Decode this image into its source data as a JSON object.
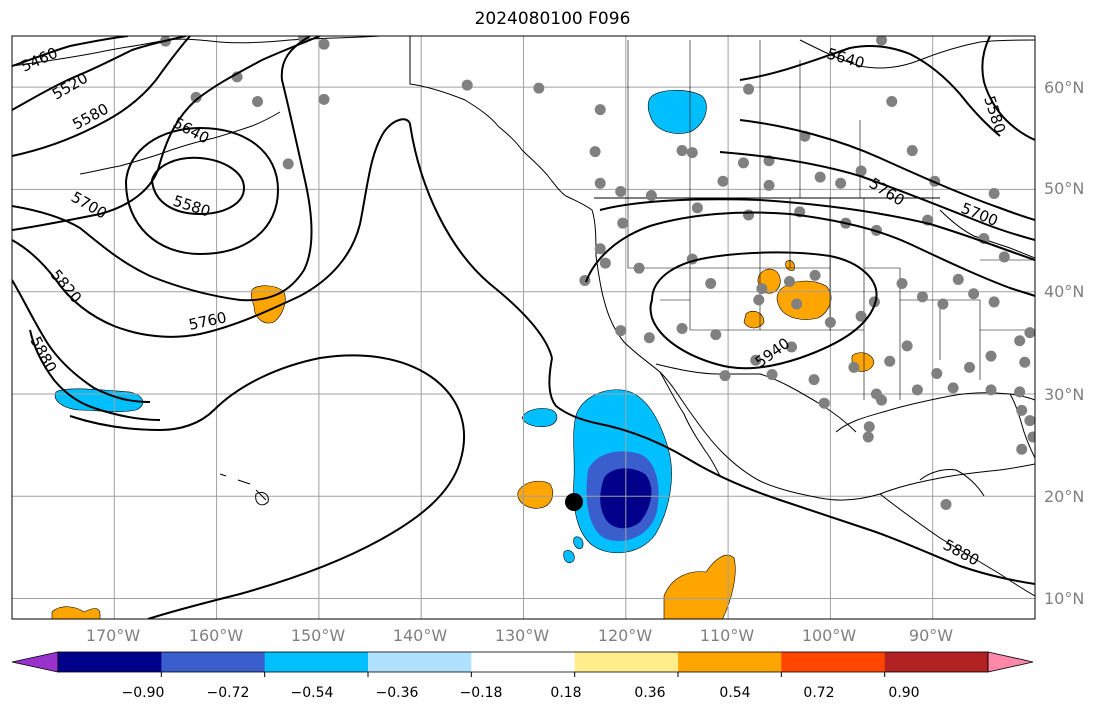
{
  "title": "2024080100 F096",
  "map": {
    "lon_range": [
      -180,
      -80
    ],
    "lat_range": [
      8,
      65
    ],
    "gridlines": true,
    "lat_labels": [
      "10°N",
      "20°N",
      "30°N",
      "40°N",
      "50°N",
      "60°N"
    ],
    "lon_labels": [
      "170°W",
      "160°W",
      "150°W",
      "140°W",
      "130°W",
      "120°W",
      "110°W",
      "100°W",
      "90°W"
    ],
    "contour_labels": [
      "5460",
      "5520",
      "5580",
      "5640",
      "5580",
      "5700",
      "5820",
      "5760",
      "5880",
      "5640",
      "5580",
      "5760",
      "5700",
      "5940",
      "5880"
    ],
    "low_center_label": "5580",
    "colors": {
      "land_outline": "#000000",
      "contour": "#000000",
      "gridline": "#a0a0a0",
      "tick_label": "#808080",
      "station_dot": "#808080"
    }
  },
  "colorbar": {
    "colors": [
      "#9932cc",
      "#00008b",
      "#3a5fcd",
      "#00bfff",
      "#b0e2ff",
      "#ffffff",
      "#ffec8b",
      "#ffa500",
      "#ff4500",
      "#b22222",
      "#ff88aa"
    ],
    "ticks": [
      "−0.90",
      "−0.72",
      "−0.54",
      "−0.36",
      "−0.18",
      "0.18",
      "0.36",
      "0.54",
      "0.72",
      "0.90"
    ]
  }
}
